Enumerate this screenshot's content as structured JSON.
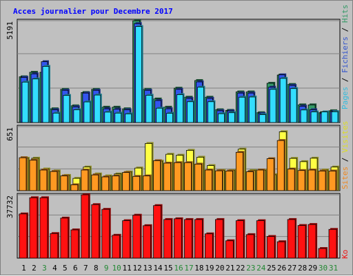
{
  "title": "Acces journalier pour Decembre 2017",
  "colors": {
    "background": "#c0c0c0",
    "title": "#0000ff",
    "grid": "#808080",
    "hits": "#339966",
    "files": "#3355ee",
    "pages": "#33ddff",
    "visits": "#ffff44",
    "sites": "#ff9922",
    "ko": "#ff1111",
    "day_weekday": "#000000",
    "day_weekend": "#228833"
  },
  "legend": {
    "top": [
      {
        "label": "Pages",
        "color": "#33bbdd"
      },
      {
        "label": " / ",
        "color": "#000000"
      },
      {
        "label": "Fichiers",
        "color": "#3355cc"
      },
      {
        "label": " / ",
        "color": "#000000"
      },
      {
        "label": "Hits",
        "color": "#339966"
      }
    ],
    "middle": [
      {
        "label": "Sites",
        "color": "#ee8822"
      },
      {
        "label": " / ",
        "color": "#000000"
      },
      {
        "label": "Visites",
        "color": "#dddd22"
      }
    ],
    "bottom": [
      {
        "label": "Ko",
        "color": "#ee1111"
      }
    ]
  },
  "chart_data": {
    "type": "bar",
    "title": "Acces journalier pour Decembre 2017",
    "categories": [
      "1",
      "2",
      "3",
      "4",
      "5",
      "6",
      "7",
      "8",
      "9",
      "10",
      "11",
      "12",
      "13",
      "14",
      "15",
      "16",
      "17",
      "18",
      "19",
      "20",
      "21",
      "22",
      "23",
      "24",
      "25",
      "26",
      "27",
      "28",
      "29",
      "30",
      "31"
    ],
    "weekend_days": [
      "3",
      "9",
      "10",
      "16",
      "17",
      "23",
      "24",
      "30",
      "31"
    ],
    "panels": [
      {
        "name": "hits",
        "ymax_label": "5191",
        "ylim": [
          0,
          5191
        ],
        "series": [
          {
            "name": "Hits",
            "values": [
              2330,
              2560,
              2560,
              700,
              1690,
              850,
              1530,
              1690,
              780,
              780,
              700,
              5191,
              1690,
              1200,
              780,
              1750,
              1290,
              2140,
              1290,
              650,
              620,
              1560,
              1560,
              500,
              2000,
              2420,
              1940,
              900,
              900,
              500,
              600
            ]
          },
          {
            "name": "Fichiers",
            "values": [
              2300,
              2480,
              3100,
              650,
              1640,
              800,
              1500,
              1640,
              700,
              680,
              650,
              5040,
              1640,
              1120,
              700,
              1690,
              1230,
              2070,
              1230,
              600,
              590,
              1500,
              1500,
              460,
              1800,
              2430,
              1890,
              830,
              650,
              460,
              560
            ]
          },
          {
            "name": "Pages",
            "values": [
              2060,
              2220,
              2860,
              480,
              1380,
              650,
              1050,
              1400,
              530,
              480,
              440,
              4890,
              1390,
              730,
              470,
              1420,
              1060,
              1800,
              1060,
              450,
              500,
              1290,
              1300,
              400,
              1690,
              2250,
              1730,
              640,
              540,
              540,
              550
            ]
          }
        ]
      },
      {
        "name": "visits",
        "ymax_label": "651",
        "ylim": [
          0,
          651
        ],
        "series": [
          {
            "name": "Visites",
            "values": [
              330,
              330,
              220,
              200,
              155,
              125,
              240,
              170,
              150,
              170,
              190,
              230,
              480,
              300,
              370,
              360,
              410,
              340,
              255,
              206,
              205,
              422,
              205,
              205,
              162,
              599,
              328,
              295,
              330,
              210,
              240
            ]
          },
          {
            "name": "Sites",
            "values": [
              335,
              310,
              210,
              195,
              150,
              60,
              210,
              160,
              140,
              150,
              185,
              145,
              150,
              305,
              280,
              285,
              285,
              270,
              210,
              202,
              200,
              390,
              192,
              210,
              325,
              510,
              220,
              205,
              210,
              200,
              200
            ]
          }
        ]
      },
      {
        "name": "ko",
        "ymax_label": "37732",
        "ylim": [
          0,
          37732
        ],
        "series": [
          {
            "name": "Ko",
            "values": [
              26330,
              35980,
              35980,
              14640,
              23850,
              16820,
              37732,
              31880,
              29060,
              13610,
              22300,
              25560,
              19330,
              31290,
              23000,
              23440,
              23000,
              23000,
              14460,
              23000,
              10340,
              22300,
              14000,
              22300,
              12900,
              9760,
              23000,
              19440,
              20040,
              5720,
              17120
            ]
          }
        ]
      }
    ]
  }
}
